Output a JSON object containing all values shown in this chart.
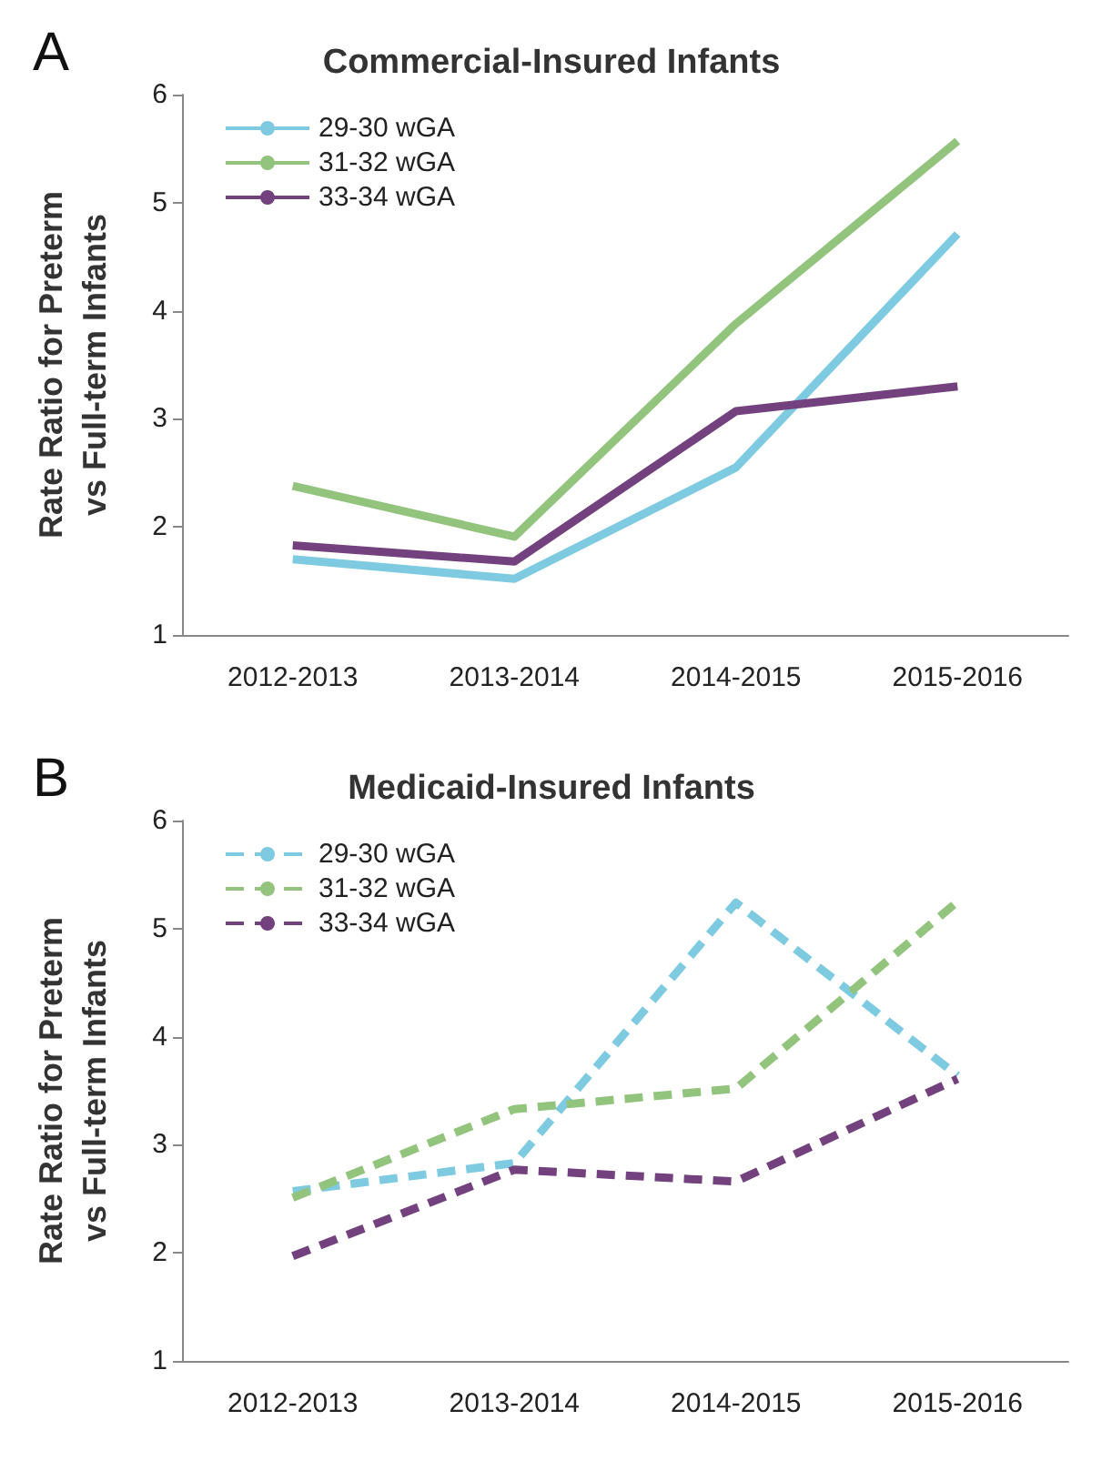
{
  "chart_data": [
    {
      "type": "line",
      "title": "Commercial-Insured Infants",
      "ylabel": "Rate Ratio for Preterm\nvs Full-term Infants",
      "annotations": [
        "A"
      ],
      "categories": [
        "2012-2013",
        "2013-2014",
        "2014-2015",
        "2015-2016"
      ],
      "ylim": [
        1,
        6
      ],
      "yticks": [
        1,
        2,
        3,
        4,
        5,
        6
      ],
      "grid": false,
      "legend": "top left",
      "marker": "none",
      "line_style": "solid",
      "series": [
        {
          "name": "29-30 wGA",
          "color": "#7ecbe1",
          "values": [
            1.7,
            1.52,
            2.55,
            4.71
          ]
        },
        {
          "name": "31-32 wGA",
          "color": "#93c47d",
          "values": [
            2.38,
            1.91,
            3.88,
            5.57
          ]
        },
        {
          "name": "33-34 wGA",
          "color": "#74417f",
          "values": [
            1.83,
            1.68,
            3.07,
            3.3
          ]
        }
      ]
    },
    {
      "type": "line",
      "title": "Medicaid-Insured Infants",
      "ylabel": "Rate Ratio for Preterm\nvs Full-term Infants",
      "annotations": [
        "B"
      ],
      "categories": [
        "2012-2013",
        "2013-2014",
        "2014-2015",
        "2015-2016"
      ],
      "ylim": [
        1,
        6
      ],
      "yticks": [
        1,
        2,
        3,
        4,
        5,
        6
      ],
      "grid": false,
      "legend": "top left",
      "marker": "none",
      "line_style": "dashed",
      "series": [
        {
          "name": "29-30 wGA",
          "color": "#7ecbe1",
          "values": [
            2.57,
            2.83,
            5.24,
            3.64
          ]
        },
        {
          "name": "31-32 wGA",
          "color": "#93c47d",
          "values": [
            2.51,
            3.33,
            3.52,
            5.25
          ]
        },
        {
          "name": "33-34 wGA",
          "color": "#74417f",
          "values": [
            1.97,
            2.77,
            2.66,
            3.61
          ]
        }
      ]
    }
  ]
}
